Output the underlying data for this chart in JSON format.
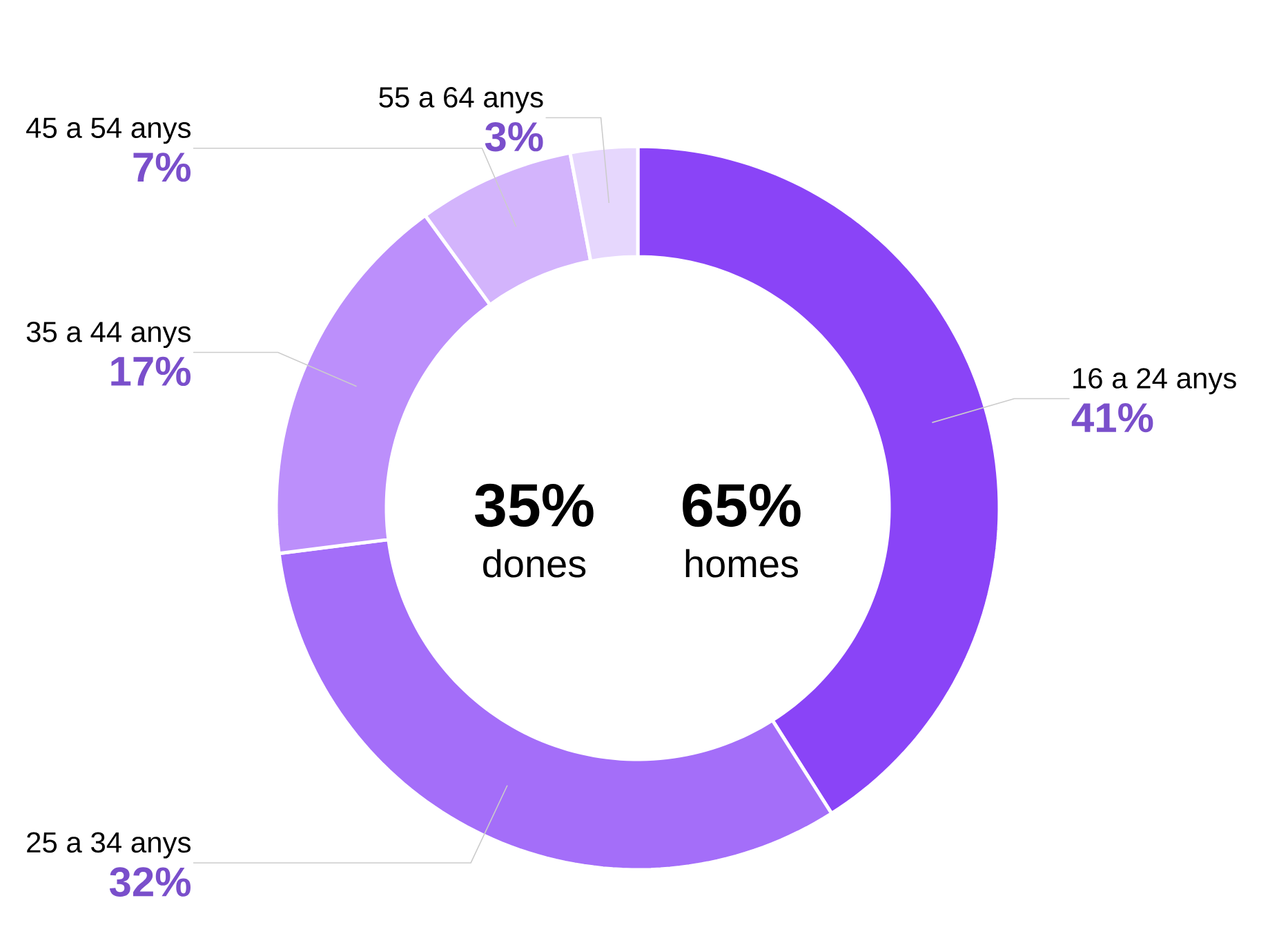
{
  "chart_data": {
    "type": "donut",
    "categories": [
      "16 a 24 anys",
      "25 a 34 anys",
      "35 a 44 anys",
      "45 a 54 anys",
      "55 a 64 anys"
    ],
    "values": [
      41,
      32,
      17,
      7,
      3
    ],
    "value_labels": [
      "41%",
      "32%",
      "17%",
      "7%",
      "3%"
    ],
    "colors": [
      "#8a44f7",
      "#a46ef9",
      "#bc8ffb",
      "#d3b4fc",
      "#e6d7fd"
    ],
    "annotations": [
      "35%",
      "dones",
      "65%",
      "homes"
    ]
  }
}
